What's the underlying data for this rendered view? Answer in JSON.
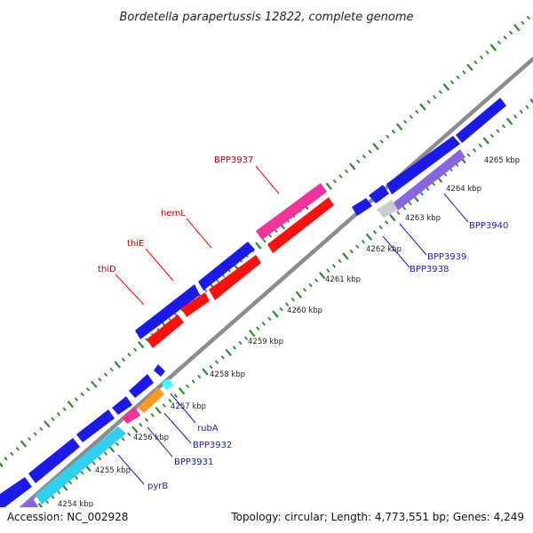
{
  "title": "Bordetella parapertussis 12822, complete genome",
  "accession": "Accession: NC_002928",
  "summary": "Topology: circular; Length: 4,773,551 bp; Genes: 4,249",
  "colors": {
    "blue": "#1a1aea",
    "red": "#ff1010",
    "magenta": "#f0339a",
    "cyan": "#30d0f0",
    "lightcyan": "#40ffff",
    "orange": "#ff9922",
    "purple": "#8866dd",
    "gray": "#cccccc",
    "backbone": "#8c8c8c",
    "dots": "#2a8a2a",
    "label_red": "#c00000",
    "label_blue": "#1a1acc"
  },
  "ticks": [
    "4254 kbp",
    "4255 kbp",
    "4256 kbp",
    "4257 kbp",
    "4258 kbp",
    "4259 kbp",
    "4260 kbp",
    "4261 kbp",
    "4262 kbp",
    "4263 kbp",
    "4264 kbp",
    "4265 kbp"
  ],
  "gene_labels": [
    {
      "name": "BPP3937",
      "color": "red"
    },
    {
      "name": "hemL",
      "color": "red"
    },
    {
      "name": "thiE",
      "color": "red"
    },
    {
      "name": "thiD",
      "color": "red"
    },
    {
      "name": "BPP3940",
      "color": "blue"
    },
    {
      "name": "BPP3939",
      "color": "blue"
    },
    {
      "name": "BPP3938",
      "color": "blue"
    },
    {
      "name": "rubA",
      "color": "blue"
    },
    {
      "name": "BPP3932",
      "color": "blue"
    },
    {
      "name": "BPP3931",
      "color": "blue"
    },
    {
      "name": "pyrB",
      "color": "blue"
    }
  ]
}
